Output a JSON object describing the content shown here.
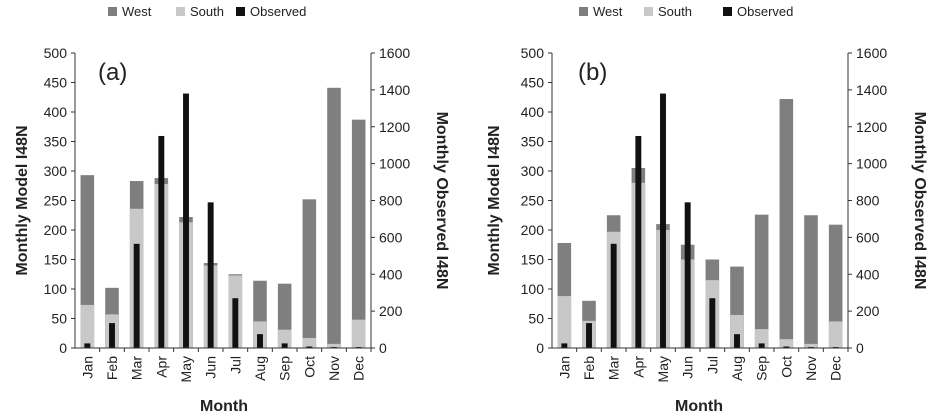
{
  "colors": {
    "West": "#7f7f7f",
    "South": "#c8c8c8",
    "Observed": "#111111",
    "axis": "#333333"
  },
  "chart_data": [
    {
      "type": "bar",
      "panel_label": "(a)",
      "categories": [
        "Jan",
        "Feb",
        "Mar",
        "Apr",
        "May",
        "Jun",
        "Jul",
        "Aug",
        "Sep",
        "Oct",
        "Nov",
        "Dec"
      ],
      "series": [
        {
          "name": "West",
          "axis": "left",
          "values": [
            293,
            102,
            283,
            288,
            222,
            144,
            125,
            114,
            109,
            252,
            441,
            387
          ]
        },
        {
          "name": "South",
          "axis": "left",
          "values": [
            73,
            57,
            236,
            278,
            213,
            140,
            123,
            45,
            31,
            17,
            7,
            48
          ]
        },
        {
          "name": "Observed",
          "axis": "right",
          "values": [
            25,
            135,
            565,
            1150,
            1380,
            790,
            270,
            75,
            25,
            8,
            5,
            5
          ]
        }
      ],
      "legend": [
        "West",
        "South",
        "Observed"
      ],
      "xlabel": "Month",
      "ylabel": "Monthly Model I48N",
      "y2label": "Monthly Observed I48N",
      "ylim": [
        0,
        500
      ],
      "yticks": [
        "0",
        "50",
        "100",
        "150",
        "200",
        "250",
        "300",
        "350",
        "400",
        "450",
        "500"
      ],
      "y2lim": [
        0,
        1600
      ],
      "y2ticks": [
        "0",
        "200",
        "400",
        "600",
        "800",
        "1000",
        "1200",
        "1400",
        "1600"
      ]
    },
    {
      "type": "bar",
      "panel_label": "(b)",
      "categories": [
        "Jan",
        "Feb",
        "Mar",
        "Apr",
        "May",
        "Jun",
        "Jul",
        "Aug",
        "Sep",
        "Oct",
        "Nov",
        "Dec"
      ],
      "series": [
        {
          "name": "West",
          "axis": "left",
          "values": [
            178,
            80,
            225,
            305,
            210,
            175,
            150,
            138,
            226,
            422,
            225,
            209
          ]
        },
        {
          "name": "South",
          "axis": "left",
          "values": [
            88,
            46,
            197,
            280,
            200,
            150,
            115,
            56,
            32,
            15,
            7,
            45
          ]
        },
        {
          "name": "Observed",
          "axis": "right",
          "values": [
            25,
            135,
            565,
            1150,
            1380,
            790,
            270,
            75,
            25,
            8,
            5,
            5
          ]
        }
      ],
      "legend": [
        "West",
        "South",
        "Observed"
      ],
      "xlabel": "Month",
      "ylabel": "Monthly Model I48N",
      "y2label": "Monthly Observed I48N",
      "ylim": [
        0,
        500
      ],
      "yticks": [
        "0",
        "50",
        "100",
        "150",
        "200",
        "250",
        "300",
        "350",
        "400",
        "450",
        "500"
      ],
      "y2lim": [
        0,
        1600
      ],
      "y2ticks": [
        "0",
        "200",
        "400",
        "600",
        "800",
        "1000",
        "1200",
        "1400",
        "1600"
      ]
    }
  ]
}
